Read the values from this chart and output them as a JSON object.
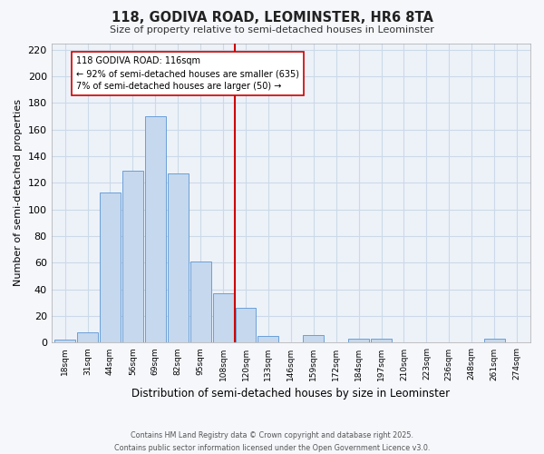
{
  "title": "118, GODIVA ROAD, LEOMINSTER, HR6 8TA",
  "subtitle": "Size of property relative to semi-detached houses in Leominster",
  "xlabel": "Distribution of semi-detached houses by size in Leominster",
  "ylabel": "Number of semi-detached properties",
  "bin_labels": [
    "18sqm",
    "31sqm",
    "44sqm",
    "56sqm",
    "69sqm",
    "82sqm",
    "95sqm",
    "108sqm",
    "120sqm",
    "133sqm",
    "146sqm",
    "159sqm",
    "172sqm",
    "184sqm",
    "197sqm",
    "210sqm",
    "223sqm",
    "236sqm",
    "248sqm",
    "261sqm",
    "274sqm"
  ],
  "bar_heights": [
    2,
    8,
    113,
    129,
    170,
    127,
    61,
    37,
    26,
    5,
    0,
    6,
    0,
    3,
    3,
    0,
    0,
    0,
    0,
    3,
    0
  ],
  "bar_color": "#c5d8ee",
  "bar_edge_color": "#6a9fd8",
  "grid_color": "#ccd9e8",
  "bg_color": "#edf2f9",
  "fig_color": "#f5f7fb",
  "vline_color": "#cc0000",
  "annotation_title": "118 GODIVA ROAD: 116sqm",
  "annotation_line1": "← 92% of semi-detached houses are smaller (635)",
  "annotation_line2": "7% of semi-detached houses are larger (50) →",
  "annotation_box_color": "#ffffff",
  "annotation_box_edge": "#cc0000",
  "footer1": "Contains HM Land Registry data © Crown copyright and database right 2025.",
  "footer2": "Contains public sector information licensed under the Open Government Licence v3.0.",
  "ylim": [
    0,
    225
  ],
  "yticks": [
    0,
    20,
    40,
    60,
    80,
    100,
    120,
    140,
    160,
    180,
    200,
    220
  ]
}
